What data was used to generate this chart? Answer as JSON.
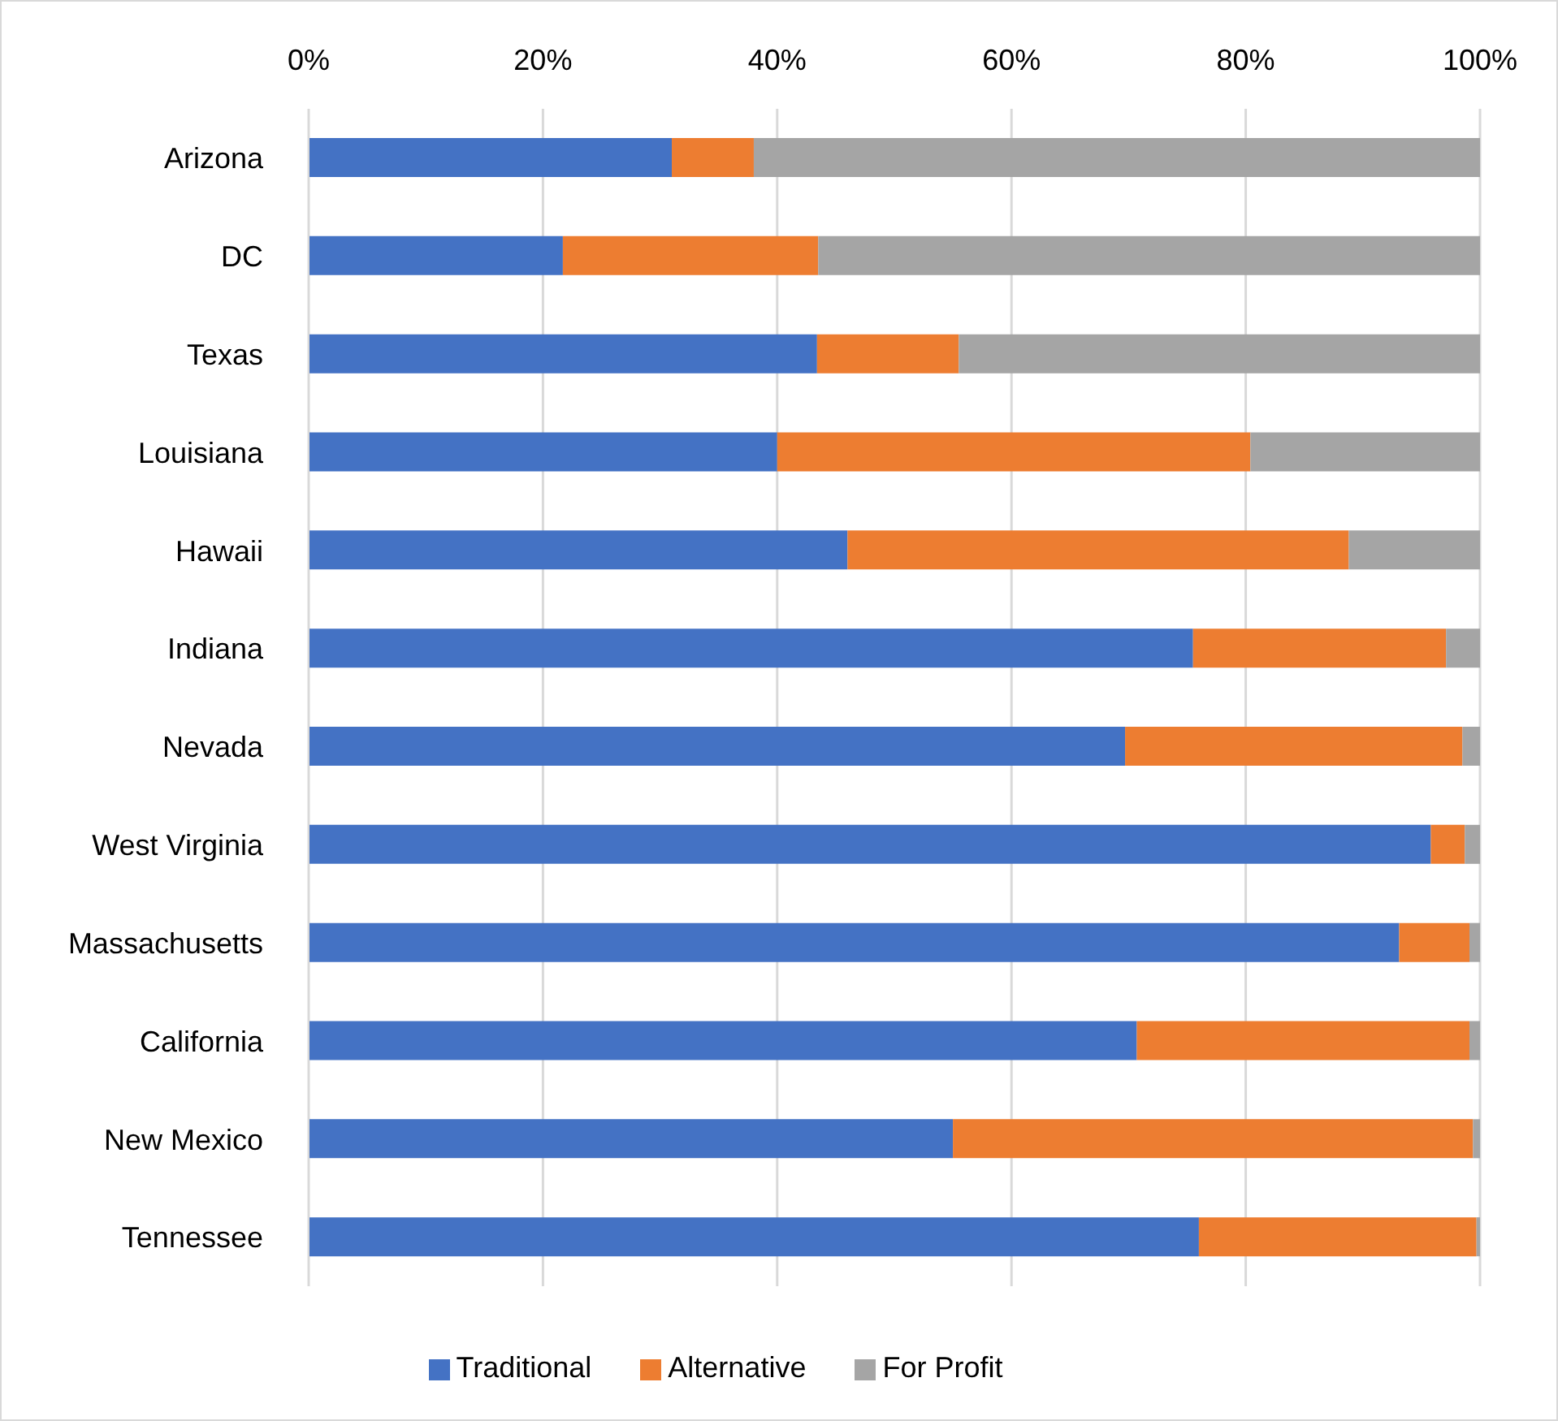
{
  "chart_data": {
    "type": "bar",
    "orientation": "horizontal",
    "stacked": true,
    "categories": [
      "Arizona",
      "DC",
      "Texas",
      "Louisiana",
      "Hawaii",
      "Indiana",
      "Nevada",
      "West Virginia",
      "Massachusetts",
      "California",
      "New Mexico",
      "Tennessee"
    ],
    "series": [
      {
        "name": "Traditional",
        "color": "#4472c4",
        "values": [
          31,
          21.7,
          43.4,
          40,
          46,
          75.5,
          69.7,
          95.8,
          93.1,
          70.7,
          55,
          76
        ]
      },
      {
        "name": "Alternative",
        "color": "#ed7d31",
        "values": [
          7,
          21.8,
          12.1,
          40.4,
          42.8,
          21.6,
          28.8,
          2.9,
          6,
          28.4,
          44.4,
          23.7
        ]
      },
      {
        "name": "For Profit",
        "color": "#a5a5a5",
        "values": [
          62,
          56.5,
          44.5,
          19.6,
          11.2,
          2.9,
          1.5,
          1.3,
          0.9,
          0.9,
          0.6,
          0.3
        ]
      }
    ],
    "xlim": [
      0,
      100
    ],
    "xticks": [
      {
        "value": 0,
        "label": "0%"
      },
      {
        "value": 20,
        "label": "20%"
      },
      {
        "value": 40,
        "label": "40%"
      },
      {
        "value": 60,
        "label": "60%"
      },
      {
        "value": 80,
        "label": "80%"
      },
      {
        "value": 100,
        "label": "100%"
      }
    ],
    "grid": "x",
    "legend": "bottom"
  }
}
